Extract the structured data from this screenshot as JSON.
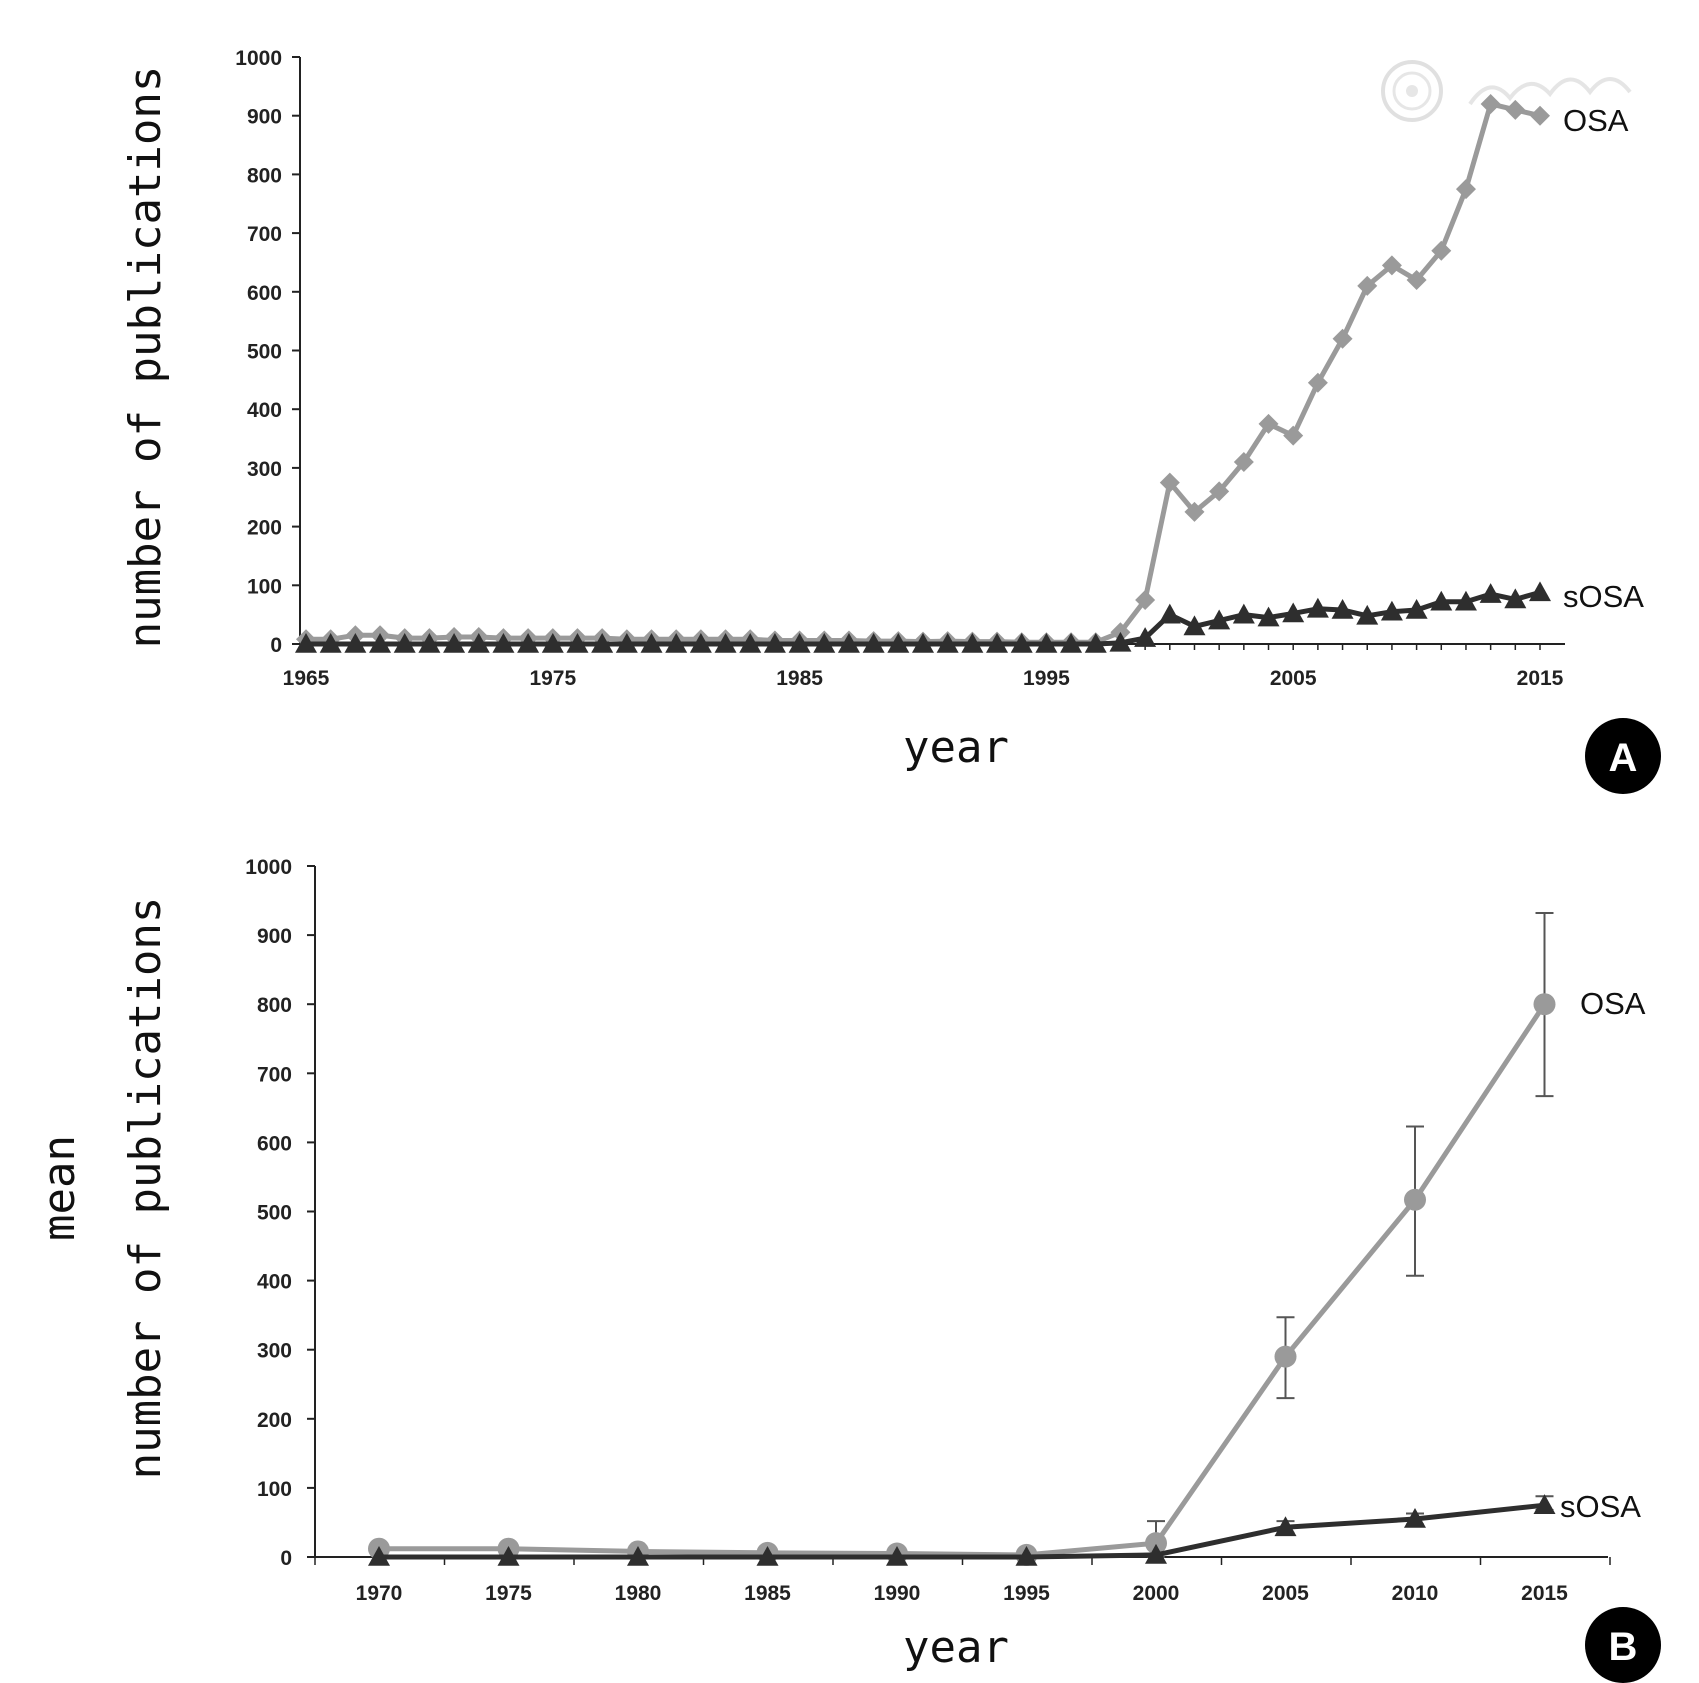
{
  "chart_data": [
    {
      "type": "line",
      "panel_label": "A",
      "xlabel": "year",
      "ylabel": "number of publications",
      "xlim": [
        1965,
        2015
      ],
      "ylim": [
        0,
        1000
      ],
      "x_ticks": [
        "1965",
        "1975",
        "1985",
        "1995",
        "2005",
        "2015"
      ],
      "y_ticks": [
        "0",
        "100",
        "200",
        "300",
        "400",
        "500",
        "600",
        "700",
        "800",
        "900",
        "1000"
      ],
      "series": [
        {
          "name": "OSA",
          "color": "#9a9a9a",
          "marker": "diamond",
          "x": [
            1965,
            1966,
            1967,
            1968,
            1969,
            1970,
            1971,
            1972,
            1973,
            1974,
            1975,
            1976,
            1977,
            1978,
            1979,
            1980,
            1981,
            1982,
            1983,
            1984,
            1985,
            1986,
            1987,
            1988,
            1989,
            1990,
            1991,
            1992,
            1993,
            1994,
            1995,
            1996,
            1997,
            1998,
            1999,
            2000,
            2001,
            2002,
            2003,
            2004,
            2005,
            2006,
            2007,
            2008,
            2009,
            2010,
            2011,
            2012,
            2013,
            2014,
            2015
          ],
          "y": [
            8,
            8,
            15,
            15,
            10,
            10,
            12,
            12,
            10,
            10,
            10,
            10,
            10,
            8,
            8,
            8,
            8,
            8,
            8,
            6,
            6,
            6,
            6,
            5,
            5,
            4,
            5,
            4,
            4,
            3,
            3,
            3,
            3,
            20,
            75,
            275,
            225,
            260,
            310,
            375,
            355,
            445,
            520,
            610,
            645,
            620,
            670,
            775,
            920,
            910,
            900
          ]
        },
        {
          "name": "sOSA",
          "color": "#2e2e2e",
          "marker": "triangle",
          "x": [
            1965,
            1966,
            1967,
            1968,
            1969,
            1970,
            1971,
            1972,
            1973,
            1974,
            1975,
            1976,
            1977,
            1978,
            1979,
            1980,
            1981,
            1982,
            1983,
            1984,
            1985,
            1986,
            1987,
            1988,
            1989,
            1990,
            1991,
            1992,
            1993,
            1994,
            1995,
            1996,
            1997,
            1998,
            1999,
            2000,
            2001,
            2002,
            2003,
            2004,
            2005,
            2006,
            2007,
            2008,
            2009,
            2010,
            2011,
            2012,
            2013,
            2014,
            2015
          ],
          "y": [
            0,
            0,
            0,
            0,
            0,
            0,
            0,
            0,
            0,
            0,
            0,
            0,
            0,
            0,
            0,
            0,
            0,
            0,
            0,
            0,
            0,
            0,
            0,
            0,
            0,
            0,
            0,
            0,
            0,
            0,
            0,
            0,
            0,
            2,
            10,
            50,
            30,
            40,
            50,
            45,
            52,
            60,
            58,
            48,
            55,
            58,
            72,
            72,
            85,
            76,
            88
          ]
        }
      ]
    },
    {
      "type": "line",
      "panel_label": "B",
      "xlabel": "year",
      "ylabel_line1": "mean",
      "ylabel_line2": "number of publications",
      "ylim": [
        0,
        1000
      ],
      "categories": [
        "1970",
        "1975",
        "1980",
        "1985",
        "1990",
        "1995",
        "2000",
        "2005",
        "2010",
        "2015"
      ],
      "y_ticks": [
        "0",
        "100",
        "200",
        "300",
        "400",
        "500",
        "600",
        "700",
        "800",
        "900",
        "1000"
      ],
      "series": [
        {
          "name": "OSA",
          "color": "#9a9a9a",
          "marker": "circle",
          "values": [
            12,
            12,
            8,
            6,
            5,
            3,
            20,
            290,
            517,
            800
          ],
          "error_low": [
            null,
            null,
            null,
            null,
            null,
            null,
            0,
            230,
            407,
            667
          ],
          "error_high": [
            null,
            null,
            null,
            null,
            null,
            null,
            52,
            347,
            623,
            932
          ]
        },
        {
          "name": "sOSA",
          "color": "#2e2e2e",
          "marker": "triangle",
          "values": [
            0,
            0,
            0,
            0,
            0,
            0,
            3,
            43,
            55,
            75
          ],
          "error_low": [
            null,
            null,
            null,
            null,
            null,
            null,
            null,
            35,
            47,
            68
          ],
          "error_high": [
            null,
            null,
            null,
            null,
            null,
            null,
            null,
            52,
            63,
            88
          ]
        }
      ]
    }
  ]
}
